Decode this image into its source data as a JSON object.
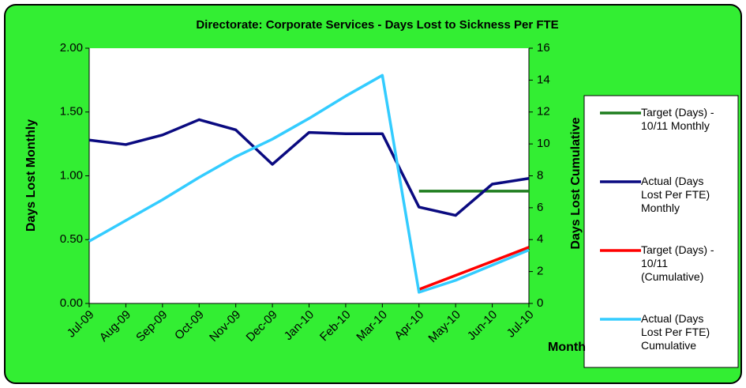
{
  "chart_data": {
    "type": "line",
    "title": "Directorate: Corporate Services - Days Lost to Sickness Per FTE",
    "y_label": "Days Lost Monthly",
    "y2_label": "Days Lost  Cumulative",
    "x_label": "Month",
    "categories": [
      "Jul-09",
      "Aug-09",
      "Sep-09",
      "Oct-09",
      "Nov-09",
      "Dec-09",
      "Jan-10",
      "Feb-10",
      "Mar-10",
      "Apr-10",
      "May-10",
      "Jun-10",
      "Jul-10"
    ],
    "series": [
      {
        "name": "Target (Days) - 10/11 Monthly",
        "color": "#1e7d1e",
        "values": [
          null,
          null,
          null,
          null,
          null,
          null,
          null,
          null,
          null,
          0.88,
          0.88,
          0.88,
          0.88
        ]
      },
      {
        "name": "Actual (Days Lost Per FTE) Monthly",
        "color": "#0a0a80",
        "values": [
          1.28,
          1.245,
          1.32,
          1.44,
          1.36,
          1.09,
          1.34,
          1.33,
          1.33,
          0.755,
          0.69,
          0.935,
          0.98
        ]
      },
      {
        "name": "Target (Days) - 10/11 (Cumulative)",
        "color": "#ff0000",
        "axis": "y2",
        "values": [
          null,
          null,
          null,
          null,
          null,
          null,
          null,
          null,
          null,
          0.88,
          1.76,
          2.64,
          3.52
        ]
      },
      {
        "name": "Actual (Days Lost Per FTE) Cumulative",
        "color": "#33ccff",
        "axis": "y2",
        "values": [
          3.9,
          5.2,
          6.5,
          7.9,
          9.2,
          10.3,
          11.6,
          13.0,
          14.3,
          0.7,
          1.45,
          2.4,
          3.35
        ]
      }
    ],
    "ylim": [
      0,
      2
    ],
    "yticks": [
      {
        "value": 0,
        "label": "0.00"
      },
      {
        "value": 0.5,
        "label": "0.50"
      },
      {
        "value": 1,
        "label": "1.00"
      },
      {
        "value": 1.5,
        "label": "1.50"
      },
      {
        "value": 2,
        "label": "2.00"
      }
    ],
    "y2lim": [
      0,
      16
    ],
    "y2ticks": [
      0,
      2,
      4,
      6,
      8,
      10,
      12,
      14,
      16
    ],
    "legend": "right"
  }
}
